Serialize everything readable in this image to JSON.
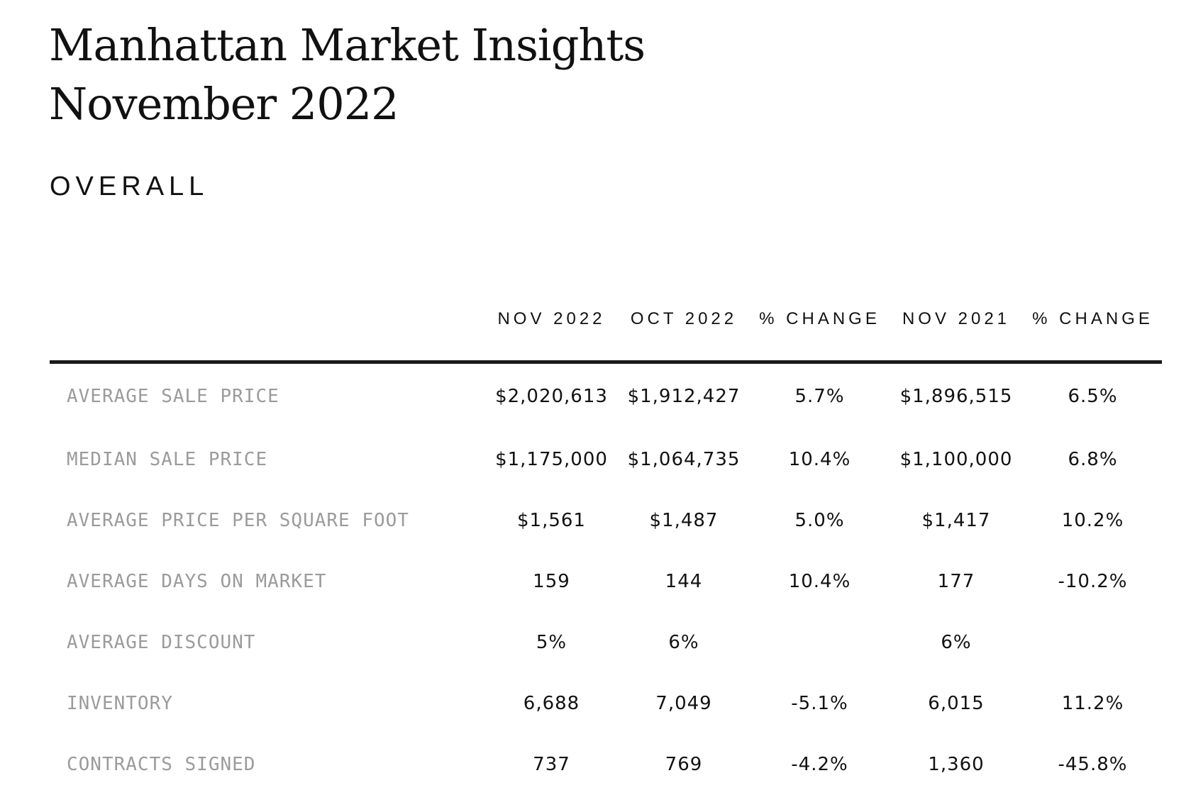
{
  "title": {
    "line1": "Manhattan Market Insights",
    "line2": "November 2022"
  },
  "section": "OVERALL",
  "table": {
    "headers": [
      "",
      "NOV 2022",
      "OCT 2022",
      "% CHANGE",
      "NOV 2021",
      "% CHANGE"
    ],
    "rows": [
      [
        "AVERAGE SALE PRICE",
        "$2,020,613",
        "$1,912,427",
        "5.7%",
        "$1,896,515",
        "6.5%"
      ],
      [
        "MEDIAN SALE PRICE",
        "$1,175,000",
        "$1,064,735",
        "10.4%",
        "$1,100,000",
        "6.8%"
      ],
      [
        "AVERAGE PRICE PER SQUARE FOOT",
        "$1,561",
        "$1,487",
        "5.0%",
        "$1,417",
        "10.2%"
      ],
      [
        "AVERAGE DAYS ON MARKET",
        "159",
        "144",
        "10.4%",
        "177",
        "-10.2%"
      ],
      [
        "AVERAGE DISCOUNT",
        "5%",
        "6%",
        "",
        "6%",
        ""
      ],
      [
        "INVENTORY",
        "6,688",
        "7,049",
        "-5.1%",
        "6,015",
        "11.2%"
      ],
      [
        "CONTRACTS SIGNED",
        "737",
        "769",
        "-4.2%",
        "1,360",
        "-45.8%"
      ]
    ]
  }
}
